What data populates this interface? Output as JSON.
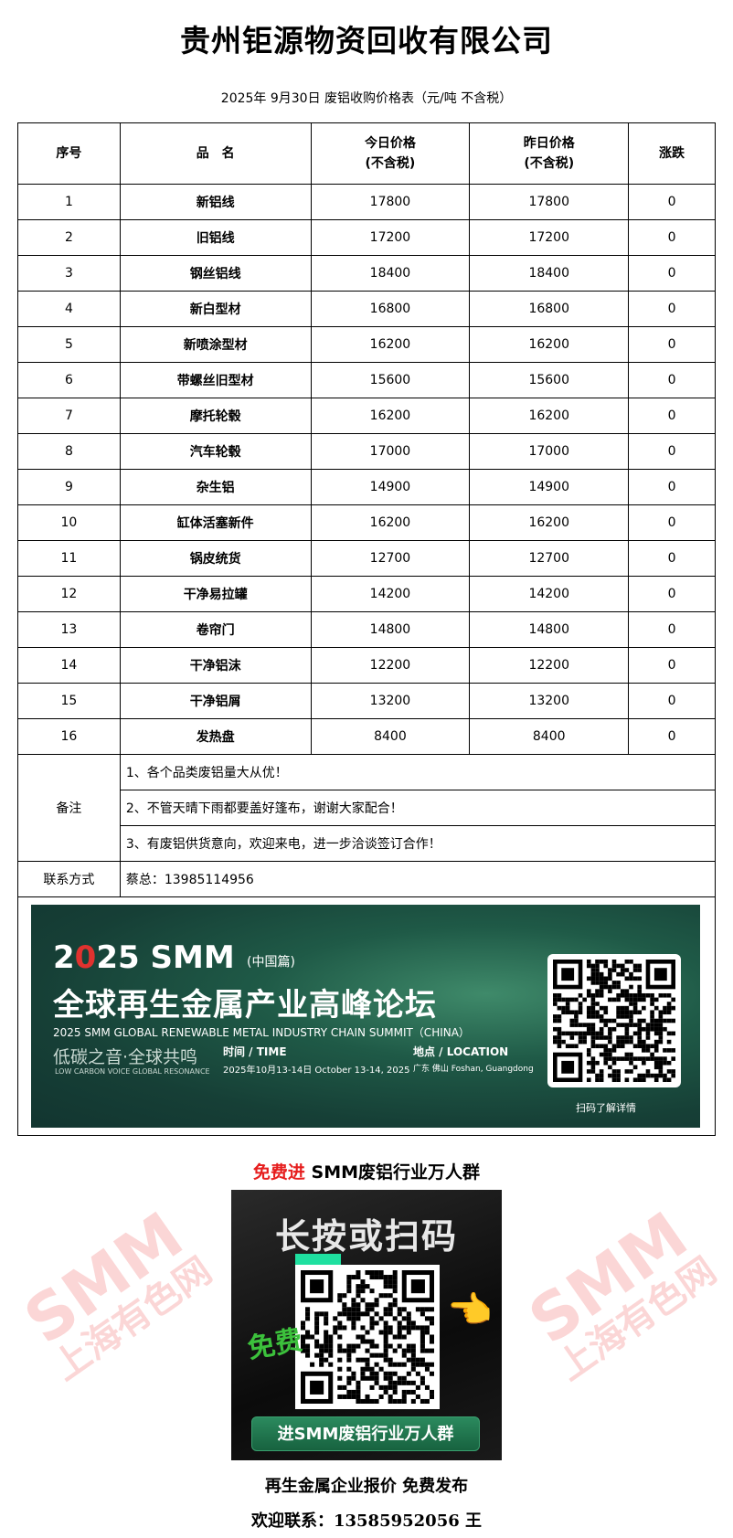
{
  "title": "贵州钜源物资回收有限公司",
  "subtitle": "2025年 9月30日 废铝收购价格表（元/吨  不含税）",
  "table": {
    "headers": {
      "seq": "序号",
      "name": "品　名",
      "today": "今日价格",
      "today_sub": "(不含税)",
      "yesterday": "昨日价格",
      "yesterday_sub": "(不含税)",
      "change": "涨跌"
    },
    "rows": [
      {
        "seq": "1",
        "name": "新铝线",
        "today": "17800",
        "yesterday": "17800",
        "change": "0"
      },
      {
        "seq": "2",
        "name": "旧铝线",
        "today": "17200",
        "yesterday": "17200",
        "change": "0"
      },
      {
        "seq": "3",
        "name": "钢丝铝线",
        "today": "18400",
        "yesterday": "18400",
        "change": "0"
      },
      {
        "seq": "4",
        "name": "新白型材",
        "today": "16800",
        "yesterday": "16800",
        "change": "0"
      },
      {
        "seq": "5",
        "name": "新喷涂型材",
        "today": "16200",
        "yesterday": "16200",
        "change": "0"
      },
      {
        "seq": "6",
        "name": "带螺丝旧型材",
        "today": "15600",
        "yesterday": "15600",
        "change": "0"
      },
      {
        "seq": "7",
        "name": "摩托轮毂",
        "today": "16200",
        "yesterday": "16200",
        "change": "0"
      },
      {
        "seq": "8",
        "name": "汽车轮毂",
        "today": "17000",
        "yesterday": "17000",
        "change": "0"
      },
      {
        "seq": "9",
        "name": "杂生铝",
        "today": "14900",
        "yesterday": "14900",
        "change": "0"
      },
      {
        "seq": "10",
        "name": "缸体活塞新件",
        "today": "16200",
        "yesterday": "16200",
        "change": "0"
      },
      {
        "seq": "11",
        "name": "锅皮统货",
        "today": "12700",
        "yesterday": "12700",
        "change": "0"
      },
      {
        "seq": "12",
        "name": "干净易拉罐",
        "today": "14200",
        "yesterday": "14200",
        "change": "0"
      },
      {
        "seq": "13",
        "name": "卷帘门",
        "today": "14800",
        "yesterday": "14800",
        "change": "0"
      },
      {
        "seq": "14",
        "name": "干净铝沫",
        "today": "12200",
        "yesterday": "12200",
        "change": "0"
      },
      {
        "seq": "15",
        "name": "干净铝屑",
        "today": "13200",
        "yesterday": "13200",
        "change": "0"
      },
      {
        "seq": "16",
        "name": "发热盘",
        "today": "8400",
        "yesterday": "8400",
        "change": "0"
      }
    ],
    "notes_label": "备注",
    "notes": [
      "1、各个品类废铝量大从优！",
      "2、不管天晴下雨都要盖好篷布，谢谢大家配合！",
      "3、有废铝供货意向，欢迎来电，进一步洽谈签订合作！"
    ],
    "contact_label": "联系方式",
    "contact": "蔡总：13985114956"
  },
  "banner": {
    "year_a": "2",
    "year_b": "25 SMM",
    "edition": "(中国篇)",
    "headline": "全球再生金属产业高峰论坛",
    "english": "2025 SMM GLOBAL RENEWABLE METAL INDUSTRY CHAIN SUMMIT（CHINA）",
    "slogan": "低碳之音·全球共鸣",
    "slogan_en": "LOW CARBON VOICE GLOBAL RESONANCE",
    "time_label": "时间 / TIME",
    "time_value": "2025年10月13-14日 October 13-14, 2025",
    "location_label": "地点 / LOCATION",
    "location_value": "广东 佛山 Foshan, Guangdong",
    "scan": "扫码了解详情"
  },
  "watermark": {
    "a": "SMM",
    "b": "上海有色网"
  },
  "group": {
    "title_red": "免费进",
    "title_black": " SMM废铝行业万人群",
    "headline": "长按或扫码",
    "free": "免费",
    "button": "进SMM废铝行业万人群"
  },
  "footer": {
    "line1": "再生金属企业报价  免费发布",
    "line2": "欢迎联系：13585952056  王"
  }
}
